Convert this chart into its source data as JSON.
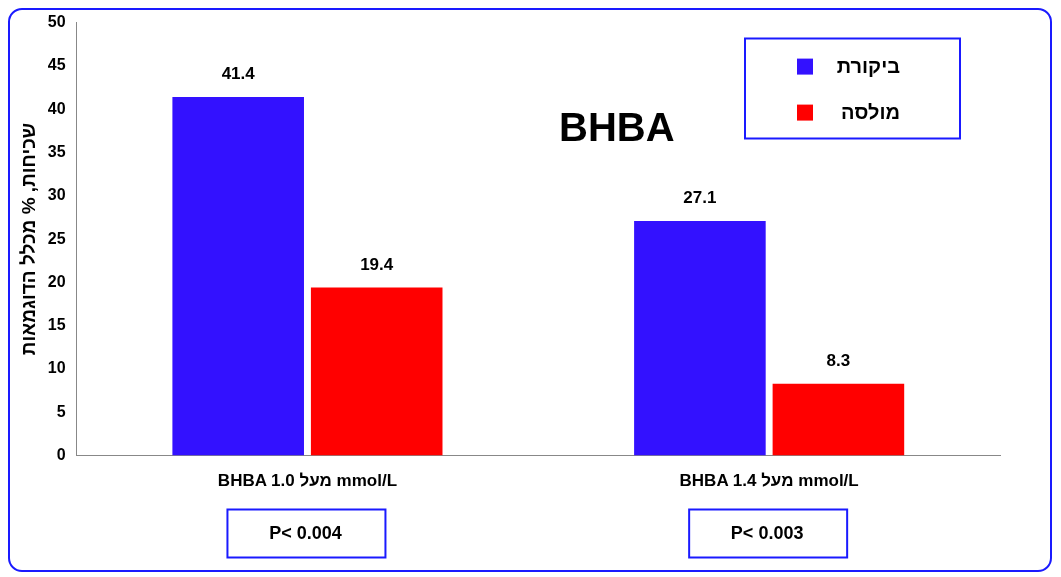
{
  "chart_data": {
    "type": "bar",
    "title": "BHBA",
    "ylabel": "שכיחות, % מכלל הדוגמאות",
    "categories": [
      "BHBA מעל 1.0 mmol/L",
      "BHBA מעל 1.4 mmol/L"
    ],
    "series": [
      {
        "name": "ביקורת",
        "color": "#3311ff",
        "values": [
          41.4,
          27.1
        ]
      },
      {
        "name": "מולסה",
        "color": "#ff0000",
        "values": [
          19.4,
          8.3
        ]
      }
    ],
    "ylim": [
      0,
      50
    ],
    "yticks": [
      0,
      5,
      10,
      15,
      20,
      25,
      30,
      35,
      40,
      45,
      50
    ],
    "data_labels": true,
    "legend": "top right",
    "grid": false,
    "annotations": [
      "P< 0.004",
      "P< 0.003"
    ]
  }
}
